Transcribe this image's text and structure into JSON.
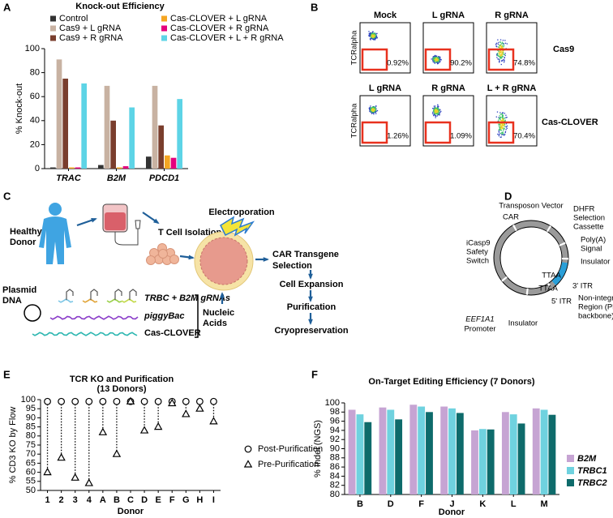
{
  "panel_labels": [
    "A",
    "B",
    "C",
    "D",
    "E",
    "F"
  ],
  "chart_data": [
    {
      "type": "bar",
      "title": "Knock-out Efficiency",
      "y_label": "% Knock-out",
      "categories": [
        "TRAC",
        "B2M",
        "PDCD1"
      ],
      "series": [
        {
          "name": "Control",
          "color": "#333333",
          "values": [
            1,
            3,
            10
          ]
        },
        {
          "name": "Cas9 + L gRNA",
          "color": "#c8b2a2",
          "values": [
            91,
            69,
            69
          ]
        },
        {
          "name": "Cas9 + R gRNA",
          "color": "#7a3e2d",
          "values": [
            75,
            40,
            36
          ]
        },
        {
          "name": "Cas-CLOVER + L gRNA",
          "color": "#f5a623",
          "values": [
            1,
            1,
            11
          ]
        },
        {
          "name": "Cas-CLOVER + R gRNA",
          "color": "#e4007d",
          "values": [
            1,
            2,
            9
          ]
        },
        {
          "name": "Cas-CLOVER + L + R gRNA",
          "color": "#5dd4e6",
          "values": [
            71,
            51,
            58
          ]
        }
      ],
      "ylim": [
        0,
        100
      ],
      "yticks": [
        0,
        20,
        40,
        60,
        80,
        100
      ]
    },
    {
      "type": "scatter",
      "title": "TCR KO and Purification",
      "subtitle": "(13 Donors)",
      "y_label": "% CD3 KO by Flow",
      "x_label": "Donor",
      "categories": [
        "1",
        "2",
        "3",
        "4",
        "A",
        "B",
        "C",
        "D",
        "E",
        "F",
        "G",
        "H",
        "I"
      ],
      "series": [
        {
          "name": "Post-Purification",
          "marker": "circle",
          "values": [
            99,
            99,
            99,
            99,
            99,
            99,
            99,
            99,
            99,
            99,
            99,
            99,
            99
          ]
        },
        {
          "name": "Pre-Purification",
          "marker": "triangle",
          "values": [
            60,
            68,
            57,
            54,
            82,
            70,
            99,
            83,
            85,
            98,
            92,
            95,
            88
          ]
        }
      ],
      "ylim": [
        50,
        100
      ],
      "yticks": [
        50,
        55,
        60,
        65,
        70,
        75,
        80,
        85,
        90,
        95,
        100
      ]
    },
    {
      "type": "bar",
      "title": "On-Target Editing Efficiency (7 Donors)",
      "y_label": "% Indel (NGS)",
      "x_label": "Donor",
      "categories": [
        "B",
        "D",
        "F",
        "J",
        "K",
        "L",
        "M"
      ],
      "series": [
        {
          "name": "B2M",
          "color": "#c6a4d3",
          "values": [
            98.5,
            99,
            99.6,
            99.2,
            94,
            98,
            98.8
          ]
        },
        {
          "name": "TRBC1",
          "color": "#6fd2df",
          "values": [
            97.5,
            98.5,
            99.2,
            98.8,
            94.3,
            97.5,
            98.5
          ]
        },
        {
          "name": "TRBC2",
          "color": "#0e6b6b",
          "values": [
            95.8,
            96.4,
            98,
            97.8,
            94.2,
            95.5,
            97.4
          ]
        }
      ],
      "ylim": [
        80,
        100
      ],
      "yticks": [
        80,
        82,
        84,
        86,
        88,
        90,
        92,
        94,
        96,
        98,
        100
      ]
    }
  ],
  "flow": {
    "y_label": "TCRalpha",
    "rows": [
      {
        "name": "Cas9",
        "plots": [
          {
            "label": "Mock",
            "percent": "0.92%"
          },
          {
            "label": "L gRNA",
            "percent": "90.2%"
          },
          {
            "label": "R gRNA",
            "percent": "74.8%"
          }
        ]
      },
      {
        "name": "Cas-CLOVER",
        "plots": [
          {
            "label": "L gRNA",
            "percent": "1.26%"
          },
          {
            "label": "R gRNA",
            "percent": "1.09%"
          },
          {
            "label": "L + R gRNA",
            "percent": "70.4%"
          }
        ]
      }
    ]
  },
  "workflow": {
    "donor": [
      "Healthy",
      "Donor"
    ],
    "isolation": "T Cell Isolation",
    "electroporation": "Electroporation",
    "selection": [
      "CAR Transgene",
      "Selection"
    ],
    "expansion": "Cell Expansion",
    "purification": "Purification",
    "cryo": "Cryopreservation",
    "plasmid": [
      "Plasmid",
      "DNA"
    ],
    "grnas": "TRBC + B2M gRNAs",
    "piggybac": "piggyBac",
    "casclover": "Cas-CLOVER",
    "nucleic": [
      "Nucleic",
      "Acids"
    ]
  },
  "plasmid": {
    "vector": "Transposon Vector",
    "car": "CAR",
    "dhfr": [
      "DHFR",
      "Selection",
      "Cassette"
    ],
    "polya": [
      "Poly(A)",
      "Signal"
    ],
    "insulator1": "Insulator",
    "ttaa1": "TTAA",
    "ttaa2": "TTAA",
    "itr3": "3' ITR",
    "itr5": "5' ITR",
    "nonint": [
      "Non-integrating",
      "Region (Plasmid",
      "backbone)"
    ],
    "insulator2": "Insulator",
    "promoter": [
      "EEF1A1",
      "Promoter"
    ],
    "icasp9": [
      "iCasp9",
      "Safety",
      "Switch"
    ]
  }
}
